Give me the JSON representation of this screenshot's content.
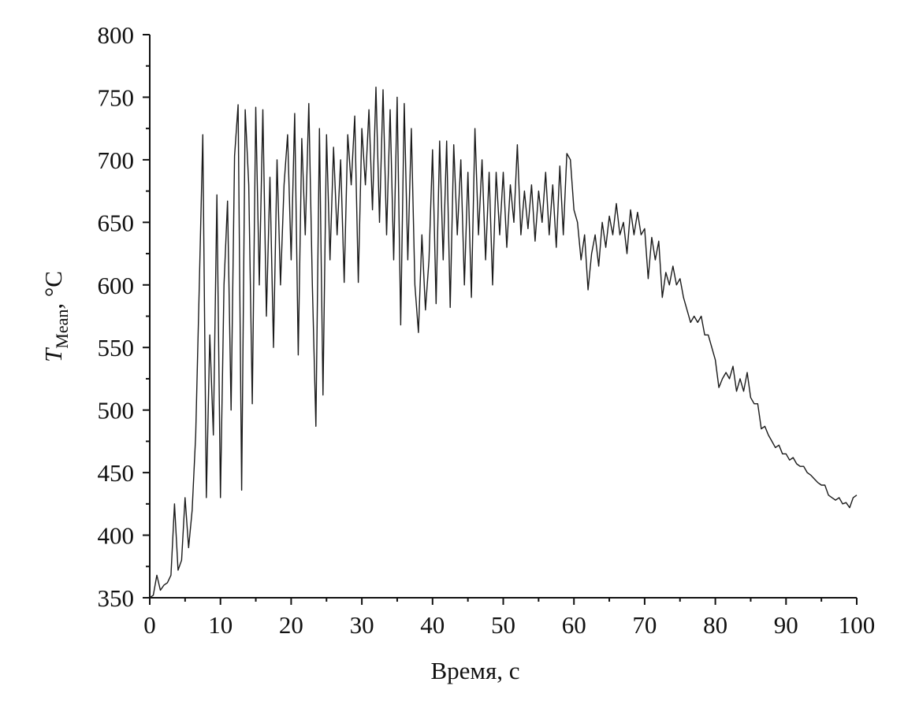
{
  "chart_data": {
    "type": "line",
    "xlabel": "Время, с",
    "ylabel": {
      "symbol": "T",
      "subscript": "Mean",
      "suffix": ", °C"
    },
    "x": [
      0,
      0.5,
      1,
      1.5,
      2,
      2.5,
      3,
      3.5,
      4,
      4.5,
      5,
      5.5,
      6,
      6.5,
      7,
      7.5,
      8,
      8.5,
      9,
      9.5,
      10,
      10.5,
      11,
      11.5,
      12,
      12.5,
      13,
      13.5,
      14,
      14.5,
      15,
      15.5,
      16,
      16.5,
      17,
      17.5,
      18,
      18.5,
      19,
      19.5,
      20,
      20.5,
      21,
      21.5,
      22,
      22.5,
      23,
      23.5,
      24,
      24.5,
      25,
      25.5,
      26,
      26.5,
      27,
      27.5,
      28,
      28.5,
      29,
      29.5,
      30,
      30.5,
      31,
      31.5,
      32,
      32.5,
      33,
      33.5,
      34,
      34.5,
      35,
      35.5,
      36,
      36.5,
      37,
      37.5,
      38,
      38.5,
      39,
      39.5,
      40,
      40.5,
      41,
      41.5,
      42,
      42.5,
      43,
      43.5,
      44,
      44.5,
      45,
      45.5,
      46,
      46.5,
      47,
      47.5,
      48,
      48.5,
      49,
      49.5,
      50,
      50.5,
      51,
      51.5,
      52,
      52.5,
      53,
      53.5,
      54,
      54.5,
      55,
      55.5,
      56,
      56.5,
      57,
      57.5,
      58,
      58.5,
      59,
      59.5,
      60,
      60.5,
      61,
      61.5,
      62,
      62.5,
      63,
      63.5,
      64,
      64.5,
      65,
      65.5,
      66,
      66.5,
      67,
      67.5,
      68,
      68.5,
      69,
      69.5,
      70,
      70.5,
      71,
      71.5,
      72,
      72.5,
      73,
      73.5,
      74,
      74.5,
      75,
      75.5,
      76,
      76.5,
      77,
      77.5,
      78,
      78.5,
      79,
      79.5,
      80,
      80.5,
      81,
      81.5,
      82,
      82.5,
      83,
      83.5,
      84,
      84.5,
      85,
      85.5,
      86,
      86.5,
      87,
      87.5,
      88,
      88.5,
      89,
      89.5,
      90,
      90.5,
      91,
      91.5,
      92,
      92.5,
      93,
      93.5,
      94,
      94.5,
      95,
      95.5,
      96,
      96.5,
      97,
      97.5,
      98,
      98.5,
      99,
      99.5,
      100
    ],
    "series": [
      {
        "color": "#1a1a1a",
        "values": [
          350,
          352,
          368,
          356,
          360,
          362,
          368,
          425,
          372,
          380,
          430,
          390,
          420,
          480,
          598,
          720,
          430,
          560,
          480,
          672,
          430,
          600,
          667,
          500,
          703,
          744,
          436,
          740,
          680,
          505,
          742,
          600,
          740,
          575,
          686,
          550,
          700,
          600,
          680,
          720,
          620,
          737,
          544,
          717,
          640,
          745,
          600,
          487,
          725,
          512,
          720,
          620,
          710,
          640,
          700,
          602,
          720,
          680,
          735,
          602,
          725,
          680,
          740,
          660,
          758,
          650,
          756,
          640,
          740,
          620,
          750,
          568,
          745,
          620,
          725,
          600,
          562,
          640,
          580,
          620,
          708,
          585,
          715,
          620,
          715,
          582,
          712,
          640,
          700,
          600,
          690,
          590,
          725,
          640,
          700,
          620,
          690,
          600,
          690,
          640,
          690,
          630,
          680,
          650,
          712,
          640,
          675,
          645,
          680,
          635,
          675,
          650,
          690,
          640,
          680,
          630,
          695,
          640,
          705,
          700,
          660,
          650,
          620,
          640,
          596,
          625,
          640,
          615,
          650,
          630,
          655,
          640,
          665,
          640,
          650,
          625,
          660,
          640,
          658,
          640,
          645,
          605,
          638,
          620,
          635,
          590,
          610,
          600,
          615,
          600,
          605,
          590,
          580,
          570,
          575,
          570,
          575,
          560,
          560,
          550,
          540,
          518,
          525,
          530,
          525,
          535,
          515,
          525,
          515,
          530,
          510,
          505,
          505,
          485,
          487,
          480,
          475,
          470,
          472,
          465,
          465,
          460,
          462,
          457,
          455,
          455,
          450,
          448,
          445,
          442,
          440,
          440,
          432,
          430,
          428,
          430,
          425,
          426,
          422,
          430,
          432
        ]
      }
    ],
    "xlim": [
      0,
      100
    ],
    "xticks": [
      0,
      10,
      20,
      30,
      40,
      50,
      60,
      70,
      80,
      90,
      100
    ],
    "xticks_minor": [
      5,
      15,
      25,
      35,
      45,
      55,
      65,
      75,
      85,
      95
    ],
    "ylim": [
      350,
      800
    ],
    "yticks": [
      350,
      400,
      450,
      500,
      550,
      600,
      650,
      700,
      750,
      800
    ],
    "yticks_minor": [
      375,
      425,
      475,
      525,
      575,
      625,
      675,
      725,
      775
    ]
  }
}
